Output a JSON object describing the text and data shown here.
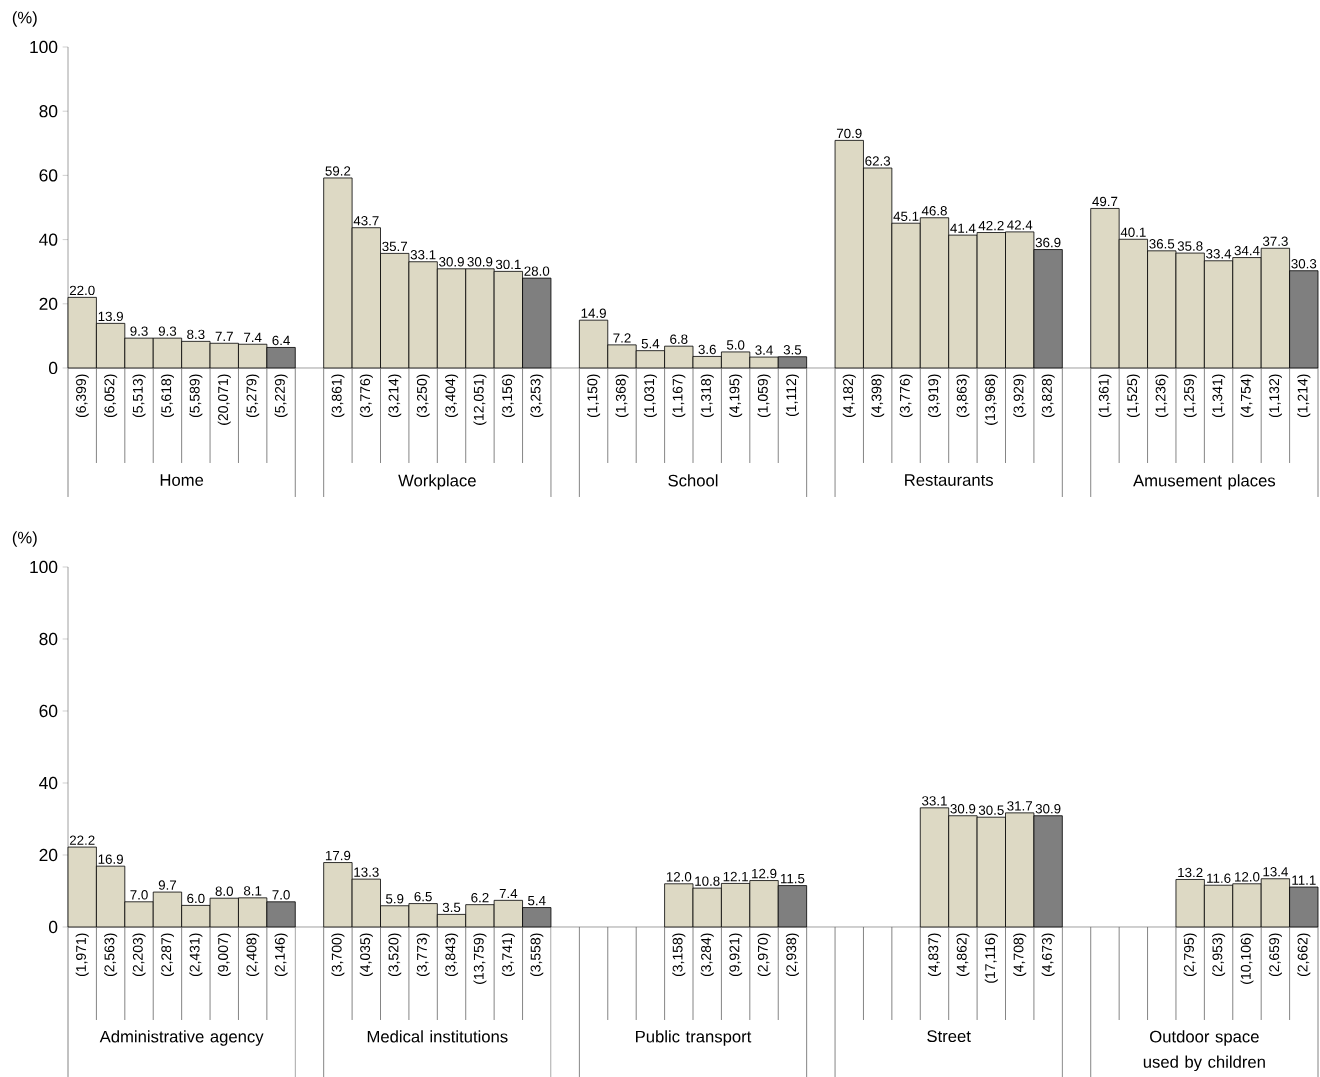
{
  "chart_data": [
    {
      "type": "bar",
      "ylabel": "(%)",
      "ylim": [
        0,
        100
      ],
      "yticks": [
        0,
        20,
        40,
        60,
        80,
        100
      ],
      "annotations": [
        "Home",
        "Workplace",
        "School",
        "Restaurants",
        "Amusement places"
      ],
      "categories": [
        "(6,399)",
        "(6,052)",
        "(5,513)",
        "(5,618)",
        "(5,589)",
        "(20,071)",
        "(5,279)",
        "(5,229)",
        "(3,861)",
        "(3,776)",
        "(3,214)",
        "(3,250)",
        "(3,404)",
        "(12,051)",
        "(3,156)",
        "(3,253)",
        "(1,150)",
        "(1,368)",
        "(1,031)",
        "(1,167)",
        "(1,318)",
        "(4,195)",
        "(1,059)",
        "(1,112)",
        "(4,182)",
        "(4,398)",
        "(3,776)",
        "(3,919)",
        "(3,863)",
        "(13,968)",
        "(3,929)",
        "(3,828)",
        "(1,361)",
        "(1,525)",
        "(1,236)",
        "(1,259)",
        "(1,341)",
        "(4,754)",
        "(1,132)",
        "(1,214)"
      ],
      "values": [
        22.0,
        13.9,
        9.3,
        9.3,
        8.3,
        7.7,
        7.4,
        6.4,
        59.2,
        43.7,
        35.7,
        33.1,
        30.9,
        30.9,
        30.1,
        28.0,
        14.9,
        7.2,
        5.4,
        6.8,
        3.6,
        5.0,
        3.4,
        3.5,
        70.9,
        62.3,
        45.1,
        46.8,
        41.4,
        42.2,
        42.4,
        36.9,
        49.7,
        40.1,
        36.5,
        35.8,
        33.4,
        34.4,
        37.3,
        30.3
      ],
      "value_labels": [
        "22.0",
        "13.9",
        "9.3",
        "9.3",
        "8.3",
        "7.7",
        "7.4",
        "6.4",
        "59.2",
        "43.7",
        "35.7",
        "33.1",
        "30.9",
        "30.9",
        "30.1",
        "28.0",
        "14.9",
        "7.2",
        "5.4",
        "6.8",
        "3.6",
        "5.0",
        "3.4",
        "3.5",
        "70.9",
        "62.3",
        "45.1",
        "46.8",
        "41.4",
        "42.2",
        "42.4",
        "36.9",
        "49.7",
        "40.1",
        "36.5",
        "35.8",
        "33.4",
        "34.4",
        "37.3",
        "30.3"
      ],
      "colors": [
        "#ddd9c4",
        "#ddd9c4",
        "#ddd9c4",
        "#ddd9c4",
        "#ddd9c4",
        "#ddd9c4",
        "#ddd9c4",
        "#7f7f7f",
        "#ddd9c4",
        "#ddd9c4",
        "#ddd9c4",
        "#ddd9c4",
        "#ddd9c4",
        "#ddd9c4",
        "#ddd9c4",
        "#7f7f7f",
        "#ddd9c4",
        "#ddd9c4",
        "#ddd9c4",
        "#ddd9c4",
        "#ddd9c4",
        "#ddd9c4",
        "#ddd9c4",
        "#7f7f7f",
        "#ddd9c4",
        "#ddd9c4",
        "#ddd9c4",
        "#ddd9c4",
        "#ddd9c4",
        "#ddd9c4",
        "#ddd9c4",
        "#7f7f7f",
        "#ddd9c4",
        "#ddd9c4",
        "#ddd9c4",
        "#ddd9c4",
        "#ddd9c4",
        "#ddd9c4",
        "#ddd9c4",
        "#7f7f7f"
      ]
    },
    {
      "type": "bar",
      "ylabel": "(%)",
      "ylim": [
        0,
        100
      ],
      "yticks": [
        0,
        20,
        40,
        60,
        80,
        100
      ],
      "annotations": [
        "Administrative agency",
        "Medical institutions",
        "Public transport",
        "Street",
        "Outdoor space used by children"
      ],
      "categories": [
        "(1,971)",
        "(2,563)",
        "(2,203)",
        "(2,287)",
        "(2,431)",
        "(9,007)",
        "(2,408)",
        "(2,146)",
        "(3,700)",
        "(4,035)",
        "(3,520)",
        "(3,773)",
        "(3,843)",
        "(13,759)",
        "(3,741)",
        "(3,558)",
        null,
        null,
        null,
        "(3,158)",
        "(3,284)",
        "(9,921)",
        "(2,970)",
        "(2,938)",
        null,
        null,
        null,
        "(4,837)",
        "(4,862)",
        "(17,116)",
        "(4,708)",
        "(4,673)",
        null,
        null,
        null,
        "(2,795)",
        "(2,953)",
        "(10,106)",
        "(2,659)",
        "(2,662)"
      ],
      "values": [
        22.2,
        16.9,
        7.0,
        9.7,
        6.0,
        8.0,
        8.1,
        7.0,
        17.9,
        13.3,
        5.9,
        6.5,
        3.5,
        6.2,
        7.4,
        5.4,
        null,
        null,
        null,
        12.0,
        10.8,
        12.1,
        12.9,
        11.5,
        null,
        null,
        null,
        33.1,
        30.9,
        30.5,
        31.7,
        30.9,
        null,
        null,
        null,
        13.2,
        11.6,
        12.0,
        13.4,
        11.1
      ],
      "value_labels": [
        "22.2",
        "16.9",
        "7.0",
        "9.7",
        "6.0",
        "8.0",
        "8.1",
        "7.0",
        "17.9",
        "13.3",
        "5.9",
        "6.5",
        "3.5",
        "6.2",
        "7.4",
        "5.4",
        null,
        null,
        null,
        "12.0",
        "10.8",
        "12.1",
        "12.9",
        "11.5",
        null,
        null,
        null,
        "33.1",
        "30.9",
        "30.5",
        "31.7",
        "30.9",
        null,
        null,
        null,
        "13.2",
        "11.6",
        "12.0",
        "13.4",
        "11.1"
      ],
      "colors": [
        "#ddd9c4",
        "#ddd9c4",
        "#ddd9c4",
        "#ddd9c4",
        "#ddd9c4",
        "#ddd9c4",
        "#ddd9c4",
        "#7f7f7f",
        "#ddd9c4",
        "#ddd9c4",
        "#ddd9c4",
        "#ddd9c4",
        "#ddd9c4",
        "#ddd9c4",
        "#ddd9c4",
        "#7f7f7f",
        null,
        null,
        null,
        "#ddd9c4",
        "#ddd9c4",
        "#ddd9c4",
        "#ddd9c4",
        "#7f7f7f",
        null,
        null,
        null,
        "#ddd9c4",
        "#ddd9c4",
        "#ddd9c4",
        "#ddd9c4",
        "#7f7f7f",
        null,
        null,
        null,
        "#ddd9c4",
        "#ddd9c4",
        "#ddd9c4",
        "#ddd9c4",
        "#7f7f7f"
      ]
    }
  ]
}
